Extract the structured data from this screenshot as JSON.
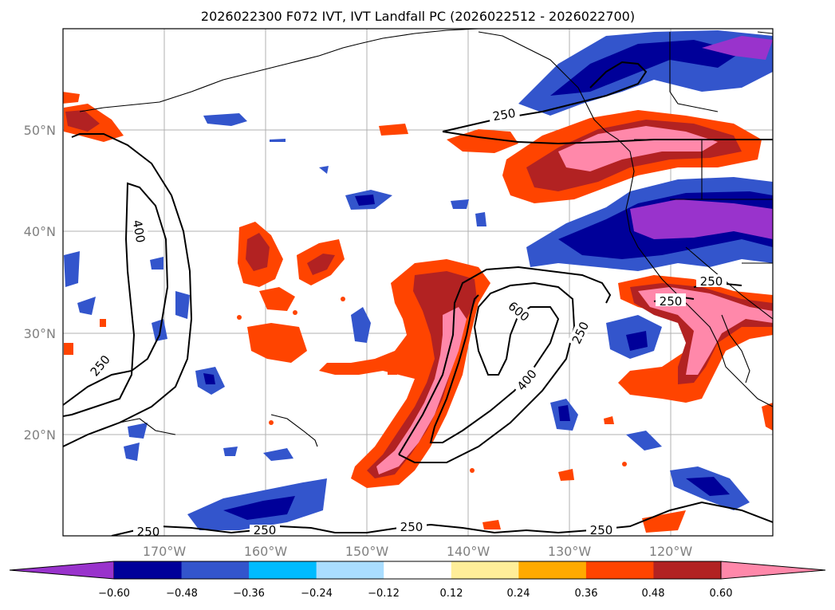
{
  "title": "2026022300 F072 IVT, IVT Landfall PC (2026022512 - 2026022700)",
  "map": {
    "lon_range": [
      -180,
      -110
    ],
    "lat_range": [
      10,
      60
    ],
    "lon_ticks": [
      "170°W",
      "160°W",
      "150°W",
      "140°W",
      "130°W",
      "120°W"
    ],
    "lat_ticks": [
      "50°N",
      "40°N",
      "30°N",
      "20°N"
    ],
    "gridlines": true
  },
  "contours": {
    "labels": [
      "250",
      "400",
      "250",
      "250",
      "250",
      "600",
      "400",
      "250",
      "250",
      "250",
      "250",
      "250"
    ]
  },
  "colorbar": {
    "ticks": [
      "−0.60",
      "−0.48",
      "−0.36",
      "−0.24",
      "−0.12",
      "0.12",
      "0.24",
      "0.36",
      "0.48",
      "0.60"
    ],
    "colors": [
      "#9933cc",
      "#000099",
      "#3355cc",
      "#00bbff",
      "#aaddff",
      "#ffffff",
      "#ffee99",
      "#ffaa00",
      "#ff4400",
      "#b22222",
      "#ff88aa"
    ],
    "extend": "both"
  }
}
